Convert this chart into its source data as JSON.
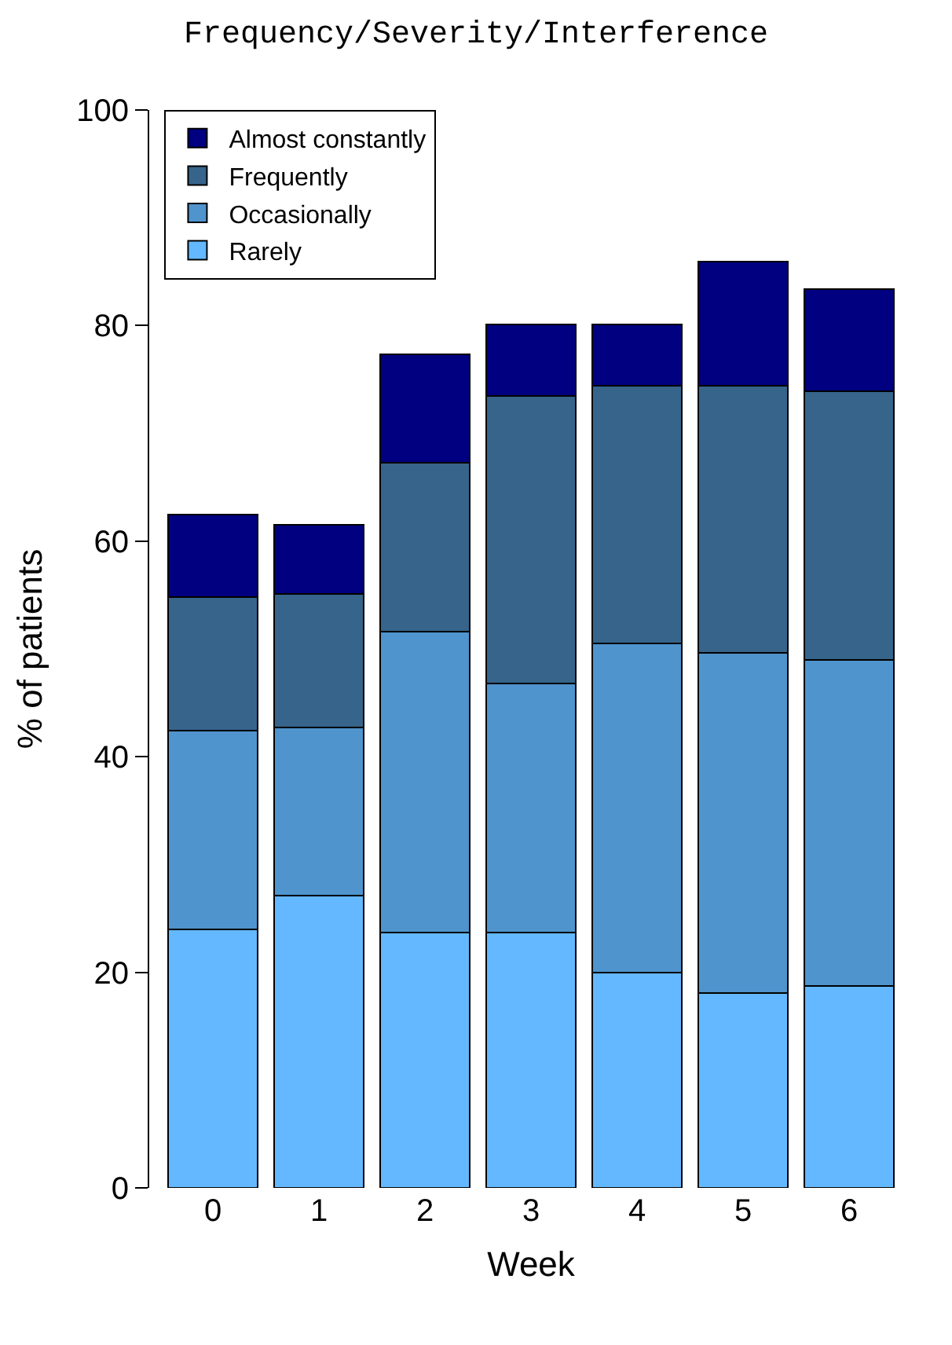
{
  "chart_data": {
    "type": "bar",
    "title": "Frequency/Severity/Interference",
    "xlabel": "Week",
    "ylabel": "% of patients",
    "categories": [
      "0",
      "1",
      "2",
      "3",
      "4",
      "5",
      "6"
    ],
    "stacked": true,
    "series": [
      {
        "name": "Rarely",
        "color": "#63b8ff",
        "values": [
          24.0,
          27.1,
          23.7,
          23.7,
          20.0,
          18.1,
          18.7
        ]
      },
      {
        "name": "Occasionally",
        "color": "#4f94cd",
        "values": [
          18.4,
          15.6,
          27.9,
          23.1,
          30.5,
          31.5,
          30.3
        ]
      },
      {
        "name": "Frequently",
        "color": "#36648b",
        "values": [
          12.4,
          12.4,
          15.7,
          26.7,
          23.9,
          24.8,
          24.9
        ]
      },
      {
        "name": "Almost constantly",
        "color": "#000080",
        "values": [
          7.7,
          6.4,
          10.0,
          6.6,
          5.7,
          11.5,
          9.5
        ]
      }
    ],
    "ylim": [
      0,
      100
    ],
    "yticks": [
      0,
      20,
      40,
      60,
      80,
      100
    ],
    "legend": "top left"
  }
}
